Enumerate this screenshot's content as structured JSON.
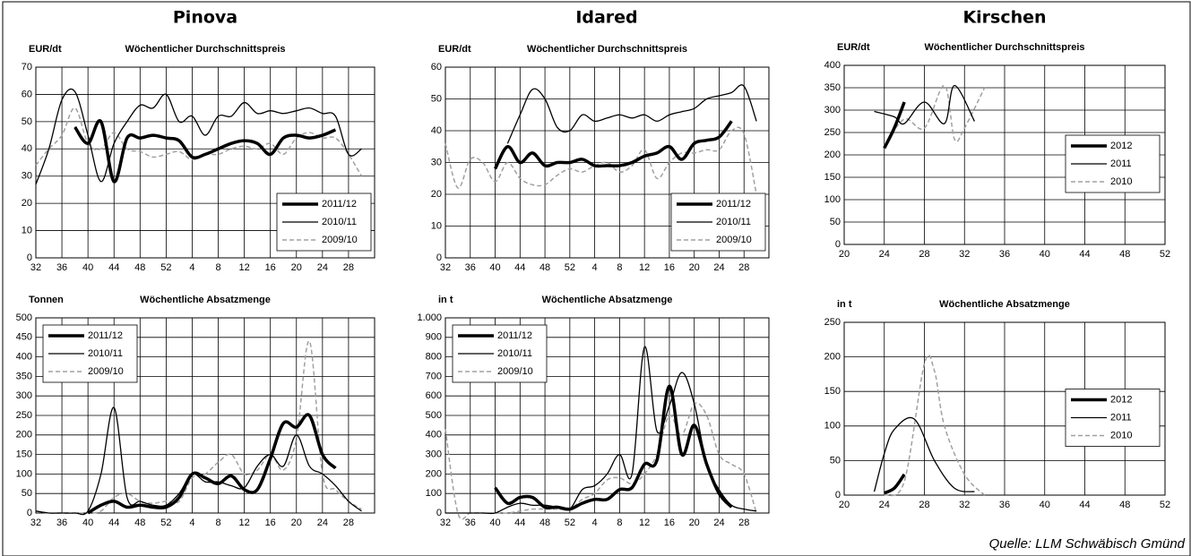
{
  "headings": [
    "Pinova",
    "Idared",
    "Kirschen"
  ],
  "source": "Quelle: LLM Schwäbisch Gmünd",
  "chart_data": [
    {
      "type": "line",
      "unit_label": "EUR/dt",
      "title": "Wöchentlicher Durchschnittspreis",
      "categories": [
        32,
        null,
        36,
        null,
        40,
        null,
        44,
        null,
        48,
        null,
        52,
        null,
        4,
        null,
        8,
        null,
        12,
        null,
        16,
        null,
        20,
        null,
        24,
        null,
        28,
        null
      ],
      "ylim": [
        0,
        70
      ],
      "yticks": [
        0,
        10,
        20,
        30,
        40,
        50,
        60,
        70
      ],
      "grid": true,
      "legend": "lower right",
      "series": [
        {
          "name": "2011/12",
          "color": "#000000",
          "line_width": 3.5,
          "dashed": false,
          "values": [
            null,
            null,
            null,
            48,
            42,
            50,
            28,
            44,
            44,
            45,
            44,
            43,
            37,
            38,
            40,
            42,
            43,
            42,
            38,
            44,
            45,
            44,
            45,
            47,
            null,
            null
          ]
        },
        {
          "name": "2010/11",
          "color": "#000000",
          "line_width": 1.3,
          "dashed": false,
          "values": [
            27,
            40,
            58,
            61,
            45,
            28,
            42,
            50,
            56,
            55,
            60,
            50,
            52,
            45,
            52,
            52,
            57,
            53,
            54,
            53,
            54,
            55,
            53,
            52,
            38,
            40
          ]
        },
        {
          "name": "2009/10",
          "color": "#a0a0a0",
          "line_width": 1.5,
          "dashed": true,
          "values": [
            34,
            40,
            45,
            55,
            42,
            40,
            46,
            40,
            39,
            37,
            38,
            39,
            36,
            38,
            38,
            40,
            41,
            40,
            42,
            38,
            44,
            46,
            44,
            44,
            38,
            30
          ]
        }
      ]
    },
    {
      "type": "line",
      "unit_label": "EUR/dt",
      "title": "Wöchentlicher Durchschnittspreis",
      "categories": [
        32,
        null,
        36,
        null,
        40,
        null,
        44,
        null,
        48,
        null,
        52,
        null,
        4,
        null,
        8,
        null,
        12,
        null,
        16,
        null,
        20,
        null,
        24,
        null,
        28,
        null
      ],
      "ylim": [
        0,
        60
      ],
      "yticks": [
        0,
        10,
        20,
        30,
        40,
        50,
        60
      ],
      "grid": true,
      "legend": "lower right",
      "series": [
        {
          "name": "2011/12",
          "color": "#000000",
          "line_width": 3.5,
          "dashed": false,
          "values": [
            null,
            null,
            null,
            null,
            28,
            35,
            30,
            33,
            29,
            30,
            30,
            31,
            29,
            29,
            29,
            30,
            32,
            33,
            35,
            31,
            36,
            37,
            38,
            43,
            null,
            null
          ]
        },
        {
          "name": "2010/11",
          "color": "#000000",
          "line_width": 1.3,
          "dashed": false,
          "values": [
            null,
            null,
            null,
            null,
            null,
            36,
            45,
            53,
            50,
            41,
            40,
            45,
            43,
            44,
            45,
            44,
            45,
            43,
            45,
            46,
            47,
            50,
            51,
            52,
            54,
            43
          ]
        },
        {
          "name": "2009/10",
          "color": "#a0a0a0",
          "line_width": 1.5,
          "dashed": true,
          "values": [
            36,
            22,
            31,
            30,
            24,
            30,
            25,
            23,
            23,
            26,
            28,
            27,
            29,
            30,
            27,
            29,
            34,
            25,
            30,
            33,
            33,
            34,
            34,
            40,
            39,
            20
          ]
        }
      ]
    },
    {
      "type": "line",
      "unit_label": "EUR/dt",
      "title": "Wöchentlicher Durchschnittspreis",
      "xlim": [
        20,
        52
      ],
      "xticks": [
        20,
        24,
        28,
        32,
        36,
        40,
        44,
        48,
        52
      ],
      "ylim": [
        0,
        400
      ],
      "yticks": [
        0,
        50,
        100,
        150,
        200,
        250,
        300,
        350,
        400
      ],
      "grid": true,
      "legend": "right",
      "series": [
        {
          "name": "2012",
          "color": "#000000",
          "line_width": 3.5,
          "dashed": false,
          "x": [
            24,
            25,
            26
          ],
          "values": [
            215,
            260,
            318
          ]
        },
        {
          "name": "2011",
          "color": "#000000",
          "line_width": 1.3,
          "dashed": false,
          "x": [
            23,
            25,
            26,
            28,
            30,
            31,
            33
          ],
          "values": [
            297,
            285,
            270,
            318,
            270,
            355,
            275
          ]
        },
        {
          "name": "2010",
          "color": "#a0a0a0",
          "line_width": 1.5,
          "dashed": true,
          "x": [
            24,
            26,
            28,
            30,
            31,
            32,
            34
          ],
          "values": [
            220,
            280,
            260,
            355,
            235,
            260,
            350
          ]
        }
      ]
    },
    {
      "type": "line",
      "unit_label": "Tonnen",
      "title": "Wöchentliche Absatzmenge",
      "categories": [
        32,
        null,
        36,
        null,
        40,
        null,
        44,
        null,
        48,
        null,
        52,
        null,
        4,
        null,
        8,
        null,
        12,
        null,
        16,
        null,
        20,
        null,
        24,
        null,
        28,
        null
      ],
      "ylim": [
        0,
        500
      ],
      "yticks": [
        0,
        50,
        100,
        150,
        200,
        250,
        300,
        350,
        400,
        450,
        500
      ],
      "grid": true,
      "legend": "upper left",
      "series": [
        {
          "name": "2011/12",
          "color": "#000000",
          "line_width": 3.5,
          "dashed": false,
          "values": [
            null,
            null,
            null,
            null,
            0,
            20,
            30,
            15,
            20,
            15,
            15,
            40,
            100,
            90,
            75,
            95,
            60,
            60,
            140,
            230,
            220,
            250,
            150,
            115,
            null,
            null
          ]
        },
        {
          "name": "2010/11",
          "color": "#000000",
          "line_width": 1.3,
          "dashed": false,
          "values": [
            5,
            0,
            0,
            0,
            5,
            100,
            270,
            40,
            30,
            20,
            20,
            50,
            100,
            80,
            80,
            70,
            65,
            120,
            150,
            120,
            200,
            120,
            100,
            70,
            30,
            5
          ]
        },
        {
          "name": "2009/10",
          "color": "#a0a0a0",
          "line_width": 1.5,
          "dashed": true,
          "values": [
            5,
            0,
            0,
            0,
            0,
            5,
            40,
            50,
            30,
            25,
            30,
            30,
            90,
            100,
            130,
            150,
            100,
            110,
            150,
            110,
            190,
            440,
            100,
            60,
            30,
            10
          ]
        }
      ]
    },
    {
      "type": "line",
      "unit_label": "in t",
      "title": "Wöchentliche Absatzmenge",
      "categories": [
        32,
        null,
        36,
        null,
        40,
        null,
        44,
        null,
        48,
        null,
        52,
        null,
        4,
        null,
        8,
        null,
        12,
        null,
        16,
        null,
        20,
        null,
        24,
        null,
        28,
        null
      ],
      "ylim": [
        0,
        1000
      ],
      "yticks": [
        0,
        100,
        200,
        300,
        400,
        500,
        600,
        700,
        800,
        900,
        {
          "value": 1000,
          "label": "1.000"
        }
      ],
      "grid": true,
      "legend": "upper left",
      "series": [
        {
          "name": "2011/12",
          "color": "#000000",
          "line_width": 3.5,
          "dashed": false,
          "values": [
            null,
            null,
            null,
            null,
            130,
            50,
            80,
            80,
            30,
            30,
            20,
            50,
            70,
            70,
            120,
            130,
            250,
            270,
            650,
            300,
            450,
            250,
            100,
            30,
            null,
            null
          ]
        },
        {
          "name": "2010/11",
          "color": "#000000",
          "line_width": 1.3,
          "dashed": false,
          "values": [
            0,
            0,
            0,
            0,
            0,
            30,
            50,
            40,
            40,
            30,
            20,
            120,
            140,
            200,
            300,
            200,
            850,
            420,
            550,
            720,
            560,
            250,
            120,
            40,
            20,
            10
          ]
        },
        {
          "name": "2009/10",
          "color": "#a0a0a0",
          "line_width": 1.5,
          "dashed": true,
          "values": [
            430,
            0,
            0,
            0,
            0,
            0,
            10,
            20,
            20,
            20,
            20,
            70,
            100,
            170,
            180,
            150,
            200,
            300,
            500,
            400,
            560,
            500,
            300,
            250,
            200,
            0
          ]
        }
      ]
    },
    {
      "type": "line",
      "unit_label": "in t",
      "title": "Wöchentliche Absatzmenge",
      "xlim": [
        20,
        52
      ],
      "xticks": [
        20,
        24,
        28,
        32,
        36,
        40,
        44,
        48,
        52
      ],
      "ylim": [
        0,
        250
      ],
      "yticks": [
        0,
        50,
        100,
        150,
        200,
        250
      ],
      "grid": true,
      "legend": "right",
      "series": [
        {
          "name": "2012",
          "color": "#000000",
          "line_width": 3.5,
          "dashed": false,
          "x": [
            24,
            25,
            26
          ],
          "values": [
            3,
            10,
            30
          ]
        },
        {
          "name": "2011",
          "color": "#000000",
          "line_width": 1.3,
          "dashed": false,
          "x": [
            23,
            24,
            25,
            27,
            29,
            31,
            33
          ],
          "values": [
            5,
            60,
            95,
            110,
            50,
            10,
            5
          ]
        },
        {
          "name": "2010",
          "color": "#a0a0a0",
          "line_width": 1.5,
          "dashed": true,
          "x": [
            24,
            26,
            28,
            29,
            30,
            32,
            34
          ],
          "values": [
            0,
            20,
            190,
            180,
            100,
            30,
            0
          ]
        }
      ]
    }
  ]
}
